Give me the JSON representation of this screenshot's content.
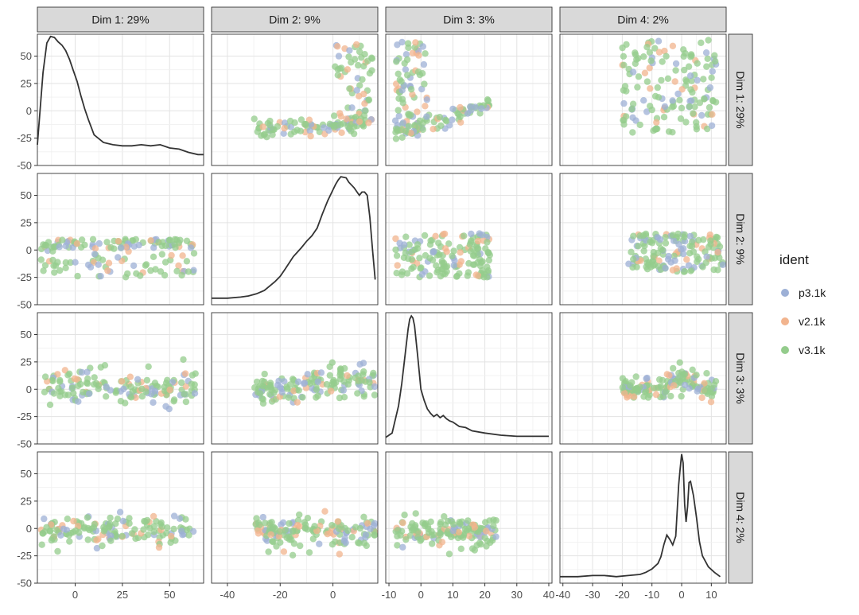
{
  "chart_data": {
    "type": "scatter_matrix",
    "title": "",
    "dimensions": [
      {
        "label": "Dim 1: 29%",
        "range": [
          -20,
          68
        ],
        "ticks": [
          0,
          25,
          50
        ],
        "ylim": [
          -50,
          70
        ],
        "yticks": [
          -50,
          -25,
          0,
          25,
          50
        ]
      },
      {
        "label": "Dim 2: 9%",
        "range": [
          -46,
          17
        ],
        "ticks": [
          -40,
          -20,
          0
        ],
        "ylim": [
          -50,
          70
        ],
        "yticks": [
          -50,
          -25,
          0,
          25,
          50
        ]
      },
      {
        "label": "Dim 3: 3%",
        "range": [
          -11,
          41
        ],
        "ticks": [
          -10,
          0,
          10,
          20,
          30,
          40
        ],
        "ylim": [
          -50,
          70
        ],
        "yticks": [
          -50,
          -25,
          0,
          25,
          50
        ]
      },
      {
        "label": "Dim 4: 2%",
        "range": [
          -41,
          15
        ],
        "ticks": [
          -40,
          -30,
          -20,
          -10,
          0,
          10
        ],
        "ylim": [
          -50,
          70
        ],
        "yticks": [
          -50,
          -25,
          0,
          25,
          50
        ]
      }
    ],
    "legend": {
      "title": "ident",
      "position": "right",
      "entries": [
        {
          "label": "p3.1k",
          "color": "#9DB0D6"
        },
        {
          "label": "v2.1k",
          "color": "#F2B48E"
        },
        {
          "label": "v3.1k",
          "color": "#94CC8C"
        }
      ]
    },
    "diagonal_type": "density",
    "densities": [
      {
        "dim": 1,
        "x": [
          -20,
          -17,
          -15,
          -13,
          -11,
          -9,
          -7,
          -5,
          -3,
          -1,
          1,
          3,
          5,
          7,
          10,
          15,
          20,
          25,
          30,
          35,
          40,
          45,
          50,
          55,
          60,
          65,
          68
        ],
        "y": [
          -31,
          35,
          62,
          68,
          67,
          63,
          60,
          55,
          47,
          37,
          27,
          14,
          2,
          -8,
          -22,
          -29,
          -31,
          -32,
          -32,
          -31,
          -32,
          -31,
          -34,
          -35,
          -38,
          -40,
          -40
        ]
      },
      {
        "dim": 2,
        "x": [
          -46,
          -40,
          -35,
          -32,
          -29,
          -26,
          -24,
          -22,
          -20,
          -18,
          -15,
          -12,
          -10,
          -8,
          -6,
          -4,
          -2,
          0,
          1,
          2,
          3,
          5,
          6,
          8,
          10,
          11,
          12,
          13,
          14,
          15,
          16
        ],
        "y": [
          -44,
          -44,
          -43,
          -42,
          -40,
          -37,
          -33,
          -29,
          -24,
          -17,
          -6,
          2,
          8,
          13,
          20,
          33,
          45,
          55,
          60,
          64,
          67,
          66,
          62,
          57,
          50,
          53,
          53,
          50,
          30,
          0,
          -27
        ]
      },
      {
        "dim": 3,
        "x": [
          -11,
          -9,
          -7,
          -6,
          -5,
          -4,
          -3.5,
          -3,
          -2.5,
          -2,
          -1,
          0,
          1,
          2,
          3,
          4,
          5,
          6,
          7,
          8,
          9,
          10,
          12,
          14,
          16,
          20,
          25,
          30,
          35,
          40
        ],
        "y": [
          -44,
          -40,
          -15,
          5,
          30,
          55,
          64,
          67,
          65,
          58,
          30,
          0,
          -10,
          -18,
          -22,
          -25,
          -23,
          -26,
          -24,
          -27,
          -29,
          -30,
          -34,
          -35,
          -38,
          -40,
          -42,
          -43,
          -43,
          -43
        ]
      },
      {
        "dim": 4,
        "x": [
          -41,
          -38,
          -35,
          -30,
          -26,
          -22,
          -18,
          -14,
          -12,
          -10,
          -8,
          -7,
          -6,
          -5,
          -4,
          -3,
          -2,
          -1,
          -0.5,
          0,
          0.5,
          1,
          1.5,
          2,
          2.5,
          3,
          4,
          5,
          6,
          7,
          9,
          11,
          13
        ],
        "y": [
          -44,
          -44,
          -44,
          -43,
          -43,
          -44,
          -43,
          -42,
          -40,
          -37,
          -32,
          -26,
          -15,
          -6,
          -10,
          -15,
          -7,
          40,
          55,
          68,
          60,
          22,
          6,
          20,
          42,
          43,
          30,
          10,
          -12,
          -25,
          -35,
          -40,
          -44
        ]
      }
    ],
    "series": [
      {
        "name": "p3.1k",
        "color": "#9DB0D6"
      },
      {
        "name": "v2.1k",
        "color": "#F2B48E"
      },
      {
        "name": "v3.1k",
        "color": "#94CC8C"
      }
    ]
  }
}
